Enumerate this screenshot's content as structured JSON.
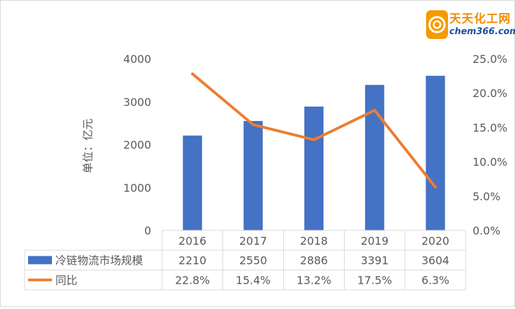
{
  "logo": {
    "title": "天天化工网",
    "url_text": "chem366.com"
  },
  "chart_data": {
    "type": "bar",
    "categories": [
      "2016",
      "2017",
      "2018",
      "2019",
      "2020"
    ],
    "series": [
      {
        "name": "冷链物流市场规模",
        "type": "bar",
        "axis": "left",
        "values": [
          2210,
          2550,
          2886,
          3391,
          3604
        ],
        "labels": [
          "2210",
          "2550",
          "2886",
          "3391",
          "3604"
        ],
        "color": "#4472c4"
      },
      {
        "name": "同比",
        "type": "line",
        "axis": "right",
        "values": [
          22.8,
          15.4,
          13.2,
          17.5,
          6.3
        ],
        "labels": [
          "22.8%",
          "15.4%",
          "13.2%",
          "17.5%",
          "6.3%"
        ],
        "color": "#ed7d31"
      }
    ],
    "ylabel": "单位：亿元",
    "ylim": [
      0,
      4000
    ],
    "yticks": [
      "0",
      "1000",
      "2000",
      "3000",
      "4000"
    ],
    "y2lim": [
      0,
      25
    ],
    "y2ticks": [
      "0.0%",
      "5.0%",
      "10.0%",
      "15.0%",
      "20.0%",
      "25.0%"
    ],
    "grid": false,
    "legend": "data-table"
  }
}
